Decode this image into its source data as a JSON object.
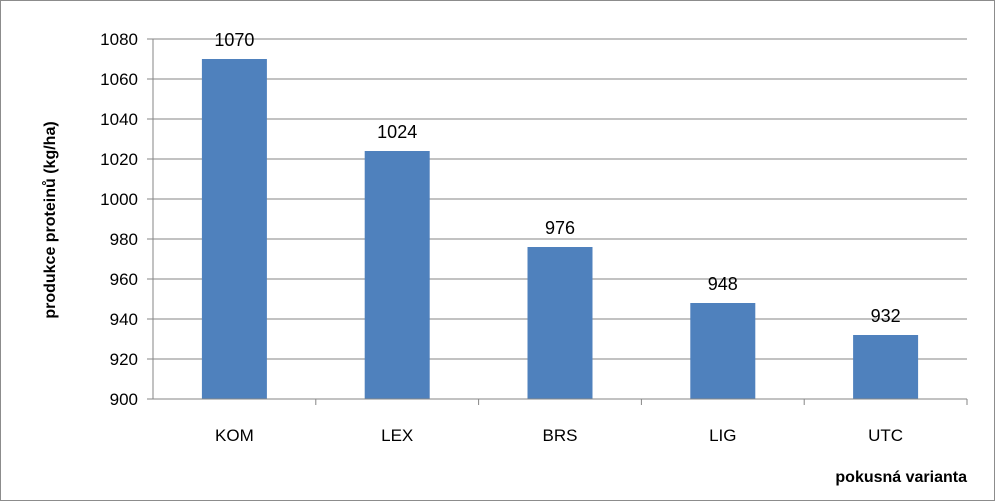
{
  "chart_data": {
    "type": "bar",
    "categories": [
      "KOM",
      "LEX",
      "BRS",
      "LIG",
      "UTC"
    ],
    "values": [
      1070,
      1024,
      976,
      948,
      932
    ],
    "data_labels": [
      "1070",
      "1024",
      "976",
      "948",
      "932"
    ],
    "xlabel": "pokusná varianta",
    "ylabel": "produkce proteinů (kg/ha)",
    "ylim": [
      900,
      1080
    ],
    "yticks": [
      900,
      920,
      940,
      960,
      980,
      1000,
      1020,
      1040,
      1060,
      1080
    ],
    "grid": true,
    "legend": "none",
    "bar_color": "#4f81bd",
    "grid_color": "#868686"
  }
}
